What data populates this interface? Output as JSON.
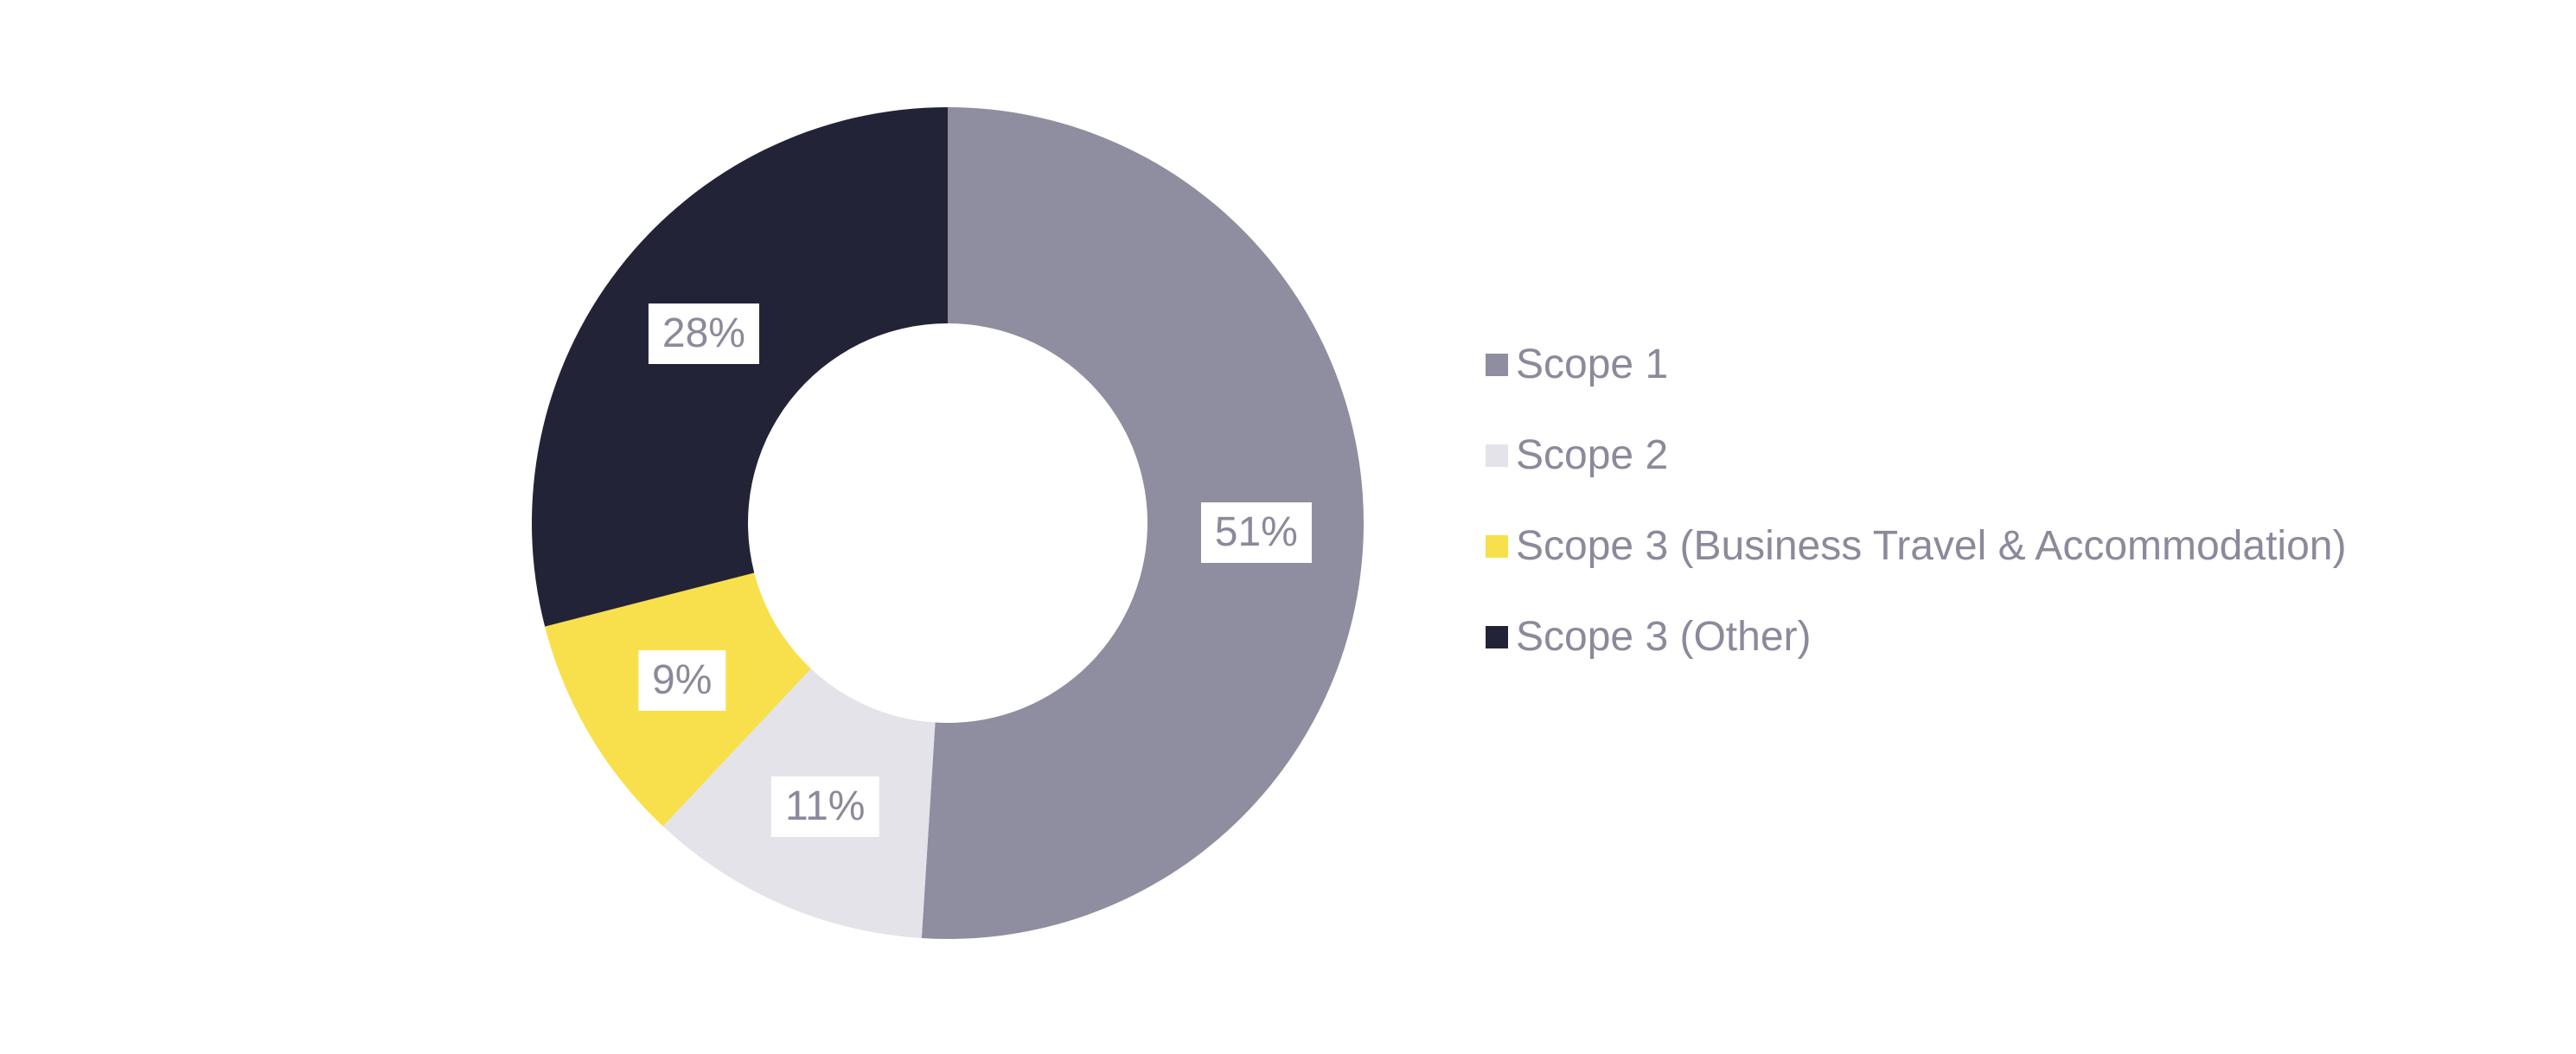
{
  "chart_data": {
    "type": "pie",
    "variant": "donut",
    "direction": "clockwise",
    "start_angle_deg": 0,
    "legend_position": "right",
    "background_color": "#ffffff",
    "data_label_style": {
      "background": "#ffffff",
      "text_color": "#8b8a9b"
    },
    "segments": [
      {
        "label": "Scope 1",
        "value": 51,
        "display": "51%",
        "color": "#8f8ea0"
      },
      {
        "label": "Scope 2",
        "value": 11,
        "display": "11%",
        "color": "#e4e3e9"
      },
      {
        "label": "Scope 3 (Business Travel & Accommodation)",
        "value": 9,
        "display": "9%",
        "color": "#f7e04c"
      },
      {
        "label": "Scope 3 (Other)",
        "value": 28,
        "display": "28%",
        "color": "#232338"
      }
    ]
  }
}
